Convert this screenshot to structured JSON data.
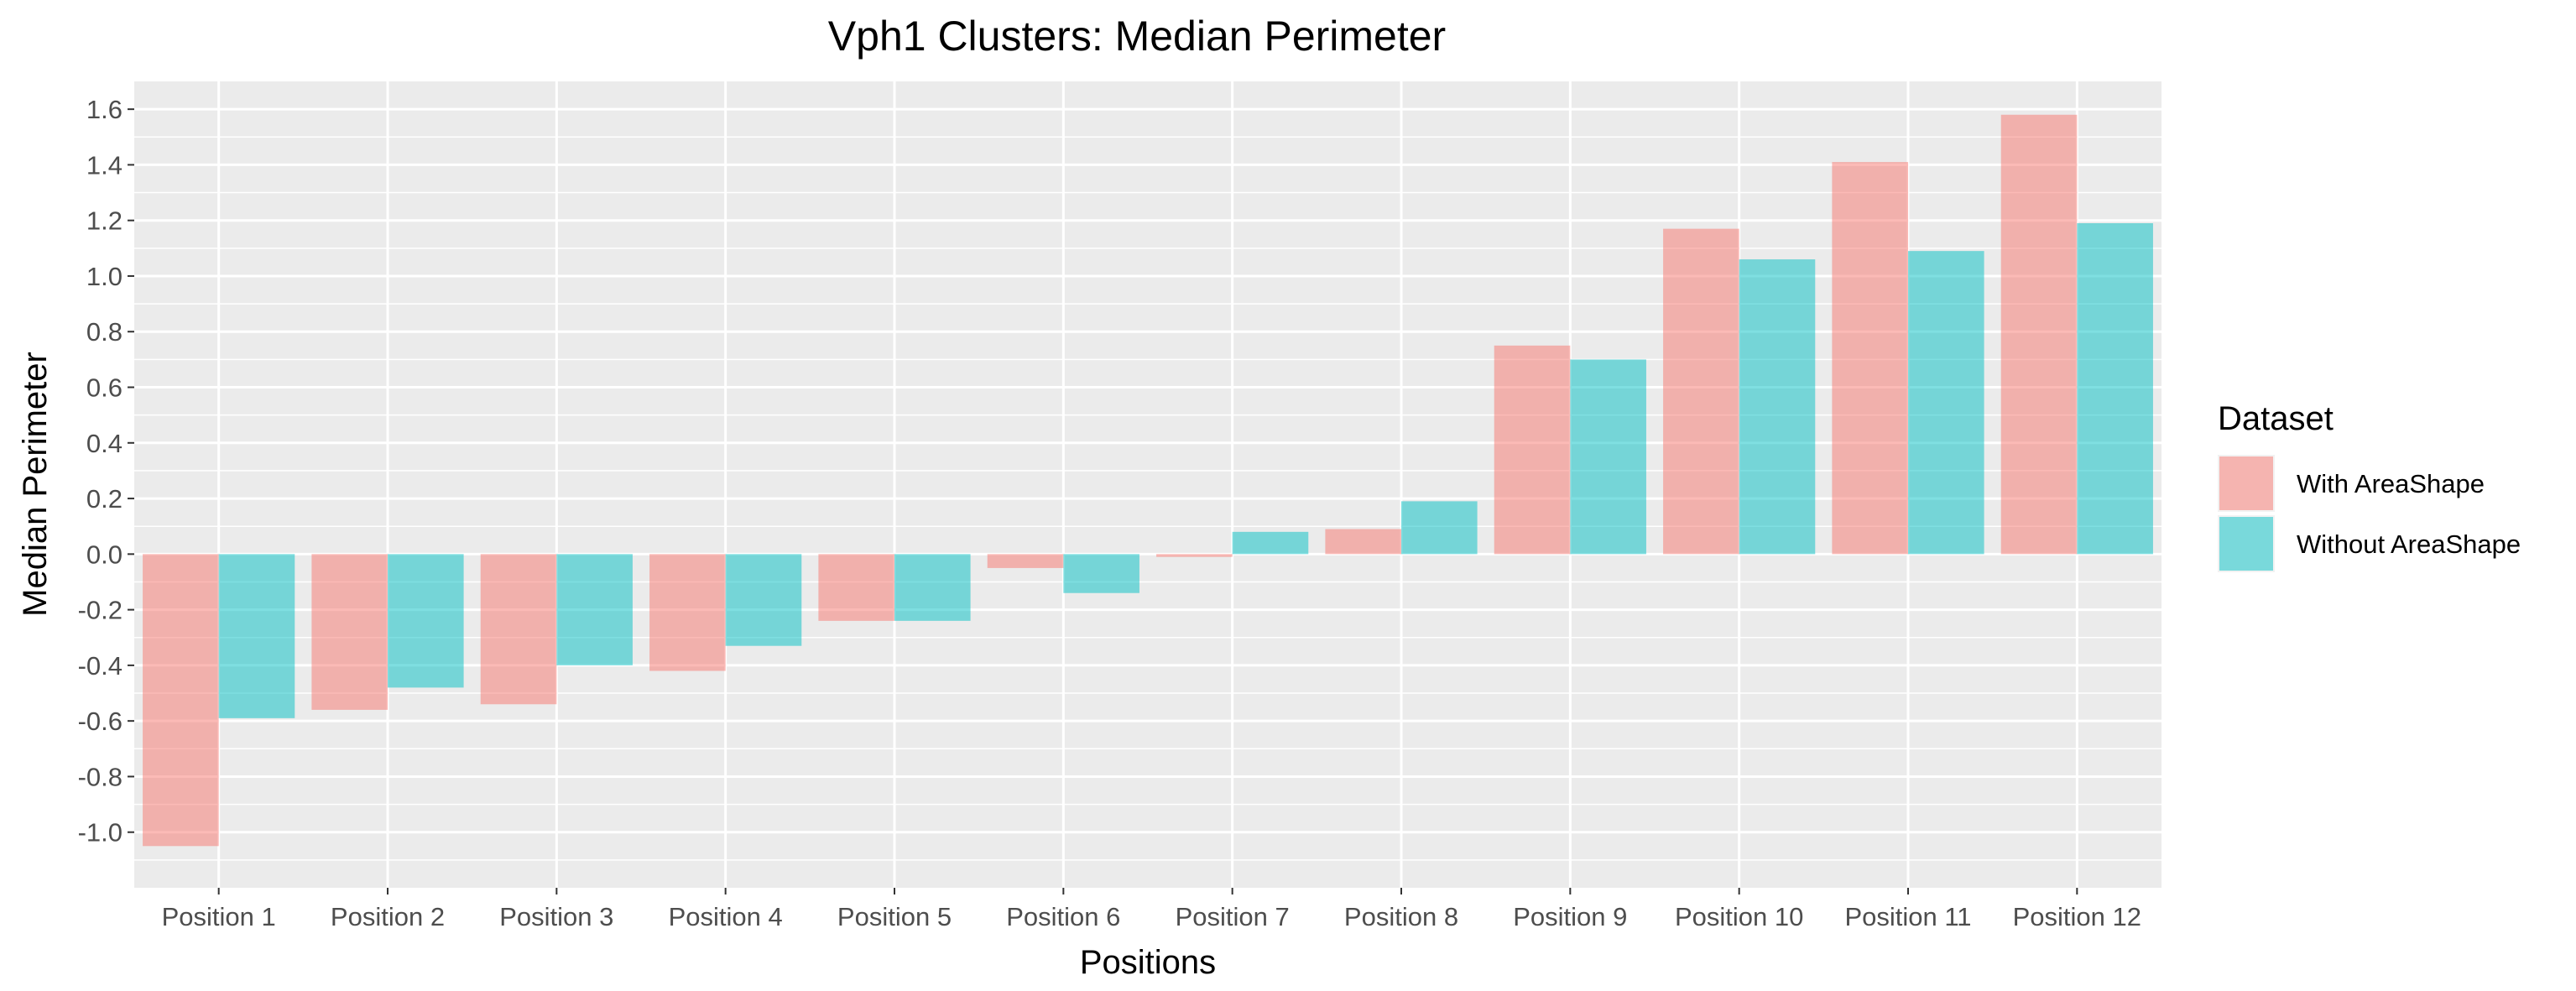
{
  "chart_data": {
    "type": "bar",
    "title": "Vph1 Clusters: Median Perimeter",
    "xlabel": "Positions",
    "ylabel": "Median Perimeter",
    "categories": [
      "Position 1",
      "Position 2",
      "Position 3",
      "Position 4",
      "Position 5",
      "Position 6",
      "Position 7",
      "Position 8",
      "Position 9",
      "Position 10",
      "Position 11",
      "Position 12"
    ],
    "series": [
      {
        "name": "With AreaShape",
        "color": "#F8766D",
        "values": [
          -1.05,
          -0.56,
          -0.54,
          -0.42,
          -0.24,
          -0.05,
          -0.01,
          0.09,
          0.75,
          1.17,
          1.41,
          1.58
        ]
      },
      {
        "name": "Without AreaShape",
        "color": "#00BFC4",
        "values": [
          -0.59,
          -0.48,
          -0.4,
          -0.33,
          -0.24,
          -0.14,
          0.08,
          0.19,
          0.7,
          1.06,
          1.09,
          1.19
        ]
      }
    ],
    "ylim": [
      -1.2,
      1.7
    ],
    "yticks": [
      -1.0,
      -0.8,
      -0.6,
      -0.4,
      -0.2,
      0.0,
      0.2,
      0.4,
      0.6,
      0.8,
      1.0,
      1.2,
      1.4,
      1.6
    ],
    "ytick_labels": [
      "-1.0",
      "-0.8",
      "-0.6",
      "-0.4",
      "-0.2",
      "0.0",
      "0.2",
      "0.4",
      "0.6",
      "0.8",
      "1.0",
      "1.2",
      "1.4",
      "1.6"
    ],
    "grid": true,
    "legend_title": "Dataset",
    "legend_position": "right",
    "bar_opacity": 0.5,
    "panel_background": "#EBEBEB"
  }
}
